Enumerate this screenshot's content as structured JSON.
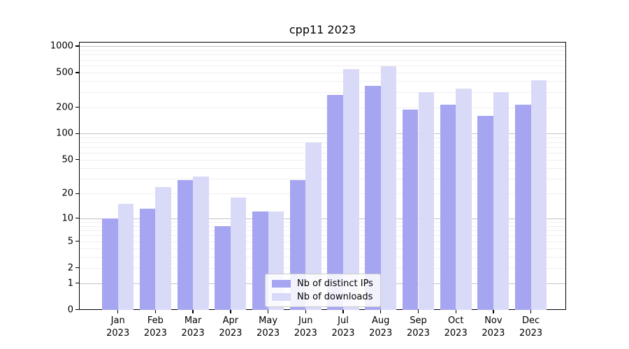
{
  "title": "cpp11 2023",
  "chart_data": {
    "type": "bar",
    "title": "cpp11 2023",
    "yscale": "log10(1+x)",
    "ylim": [
      0,
      1000
    ],
    "grid": "on",
    "legend_position": "lower-center-inside",
    "ytick_labels": [
      "0",
      "1",
      "2",
      "5",
      "10",
      "20",
      "50",
      "100",
      "200",
      "500",
      "1000"
    ],
    "ytick_values": [
      0,
      1,
      2,
      5,
      10,
      20,
      50,
      100,
      200,
      500,
      1000
    ],
    "categories": [
      "Jan",
      "Feb",
      "Mar",
      "Apr",
      "May",
      "Jun",
      "Jul",
      "Aug",
      "Sep",
      "Oct",
      "Nov",
      "Dec"
    ],
    "category_year": "2023",
    "series": [
      {
        "name": "Nb of distinct IPs",
        "color": "#a5a5f2",
        "values": [
          10,
          13,
          29,
          8,
          12,
          29,
          280,
          350,
          190,
          215,
          160,
          215
        ]
      },
      {
        "name": "Nb of downloads",
        "color": "#d9d9f8",
        "values": [
          15,
          24,
          32,
          18,
          12,
          80,
          550,
          590,
          300,
          325,
          300,
          410
        ]
      }
    ],
    "colors": {
      "grid_major": "#c3c3c3",
      "grid_minor": "#efefef",
      "axis": "#000000",
      "background": "#ffffff"
    }
  }
}
